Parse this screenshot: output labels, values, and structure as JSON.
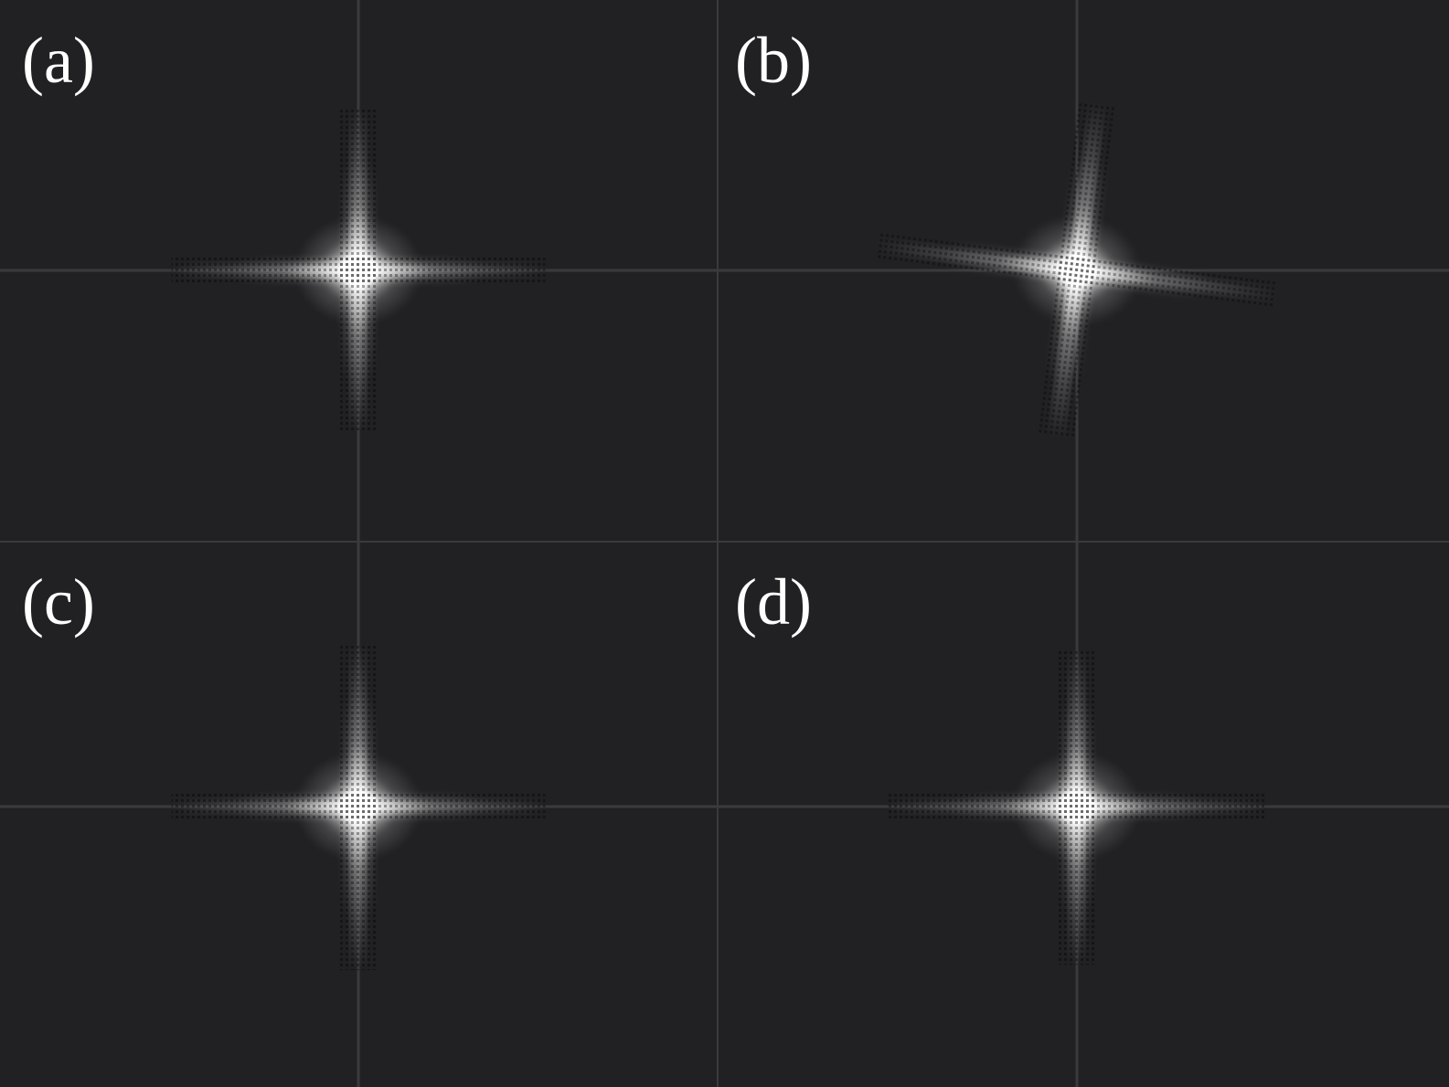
{
  "panels": [
    {
      "id": "a",
      "label": "(a)",
      "tilt_deg": 0,
      "h_extent": 0.52,
      "v_extent": 0.6,
      "brightness": 1.0
    },
    {
      "id": "b",
      "label": "(b)",
      "tilt_deg": 7,
      "h_extent": 0.55,
      "v_extent": 0.62,
      "brightness": 1.0
    },
    {
      "id": "c",
      "label": "(c)",
      "tilt_deg": 0,
      "h_extent": 0.52,
      "v_extent": 0.6,
      "brightness": 0.95
    },
    {
      "id": "d",
      "label": "(d)",
      "tilt_deg": 0,
      "h_extent": 0.52,
      "v_extent": 0.58,
      "brightness": 0.9
    }
  ],
  "colors": {
    "background": "#212123",
    "spot": "#ffffff",
    "grid_line": "#3a3a3c",
    "label": "#ffffff"
  }
}
